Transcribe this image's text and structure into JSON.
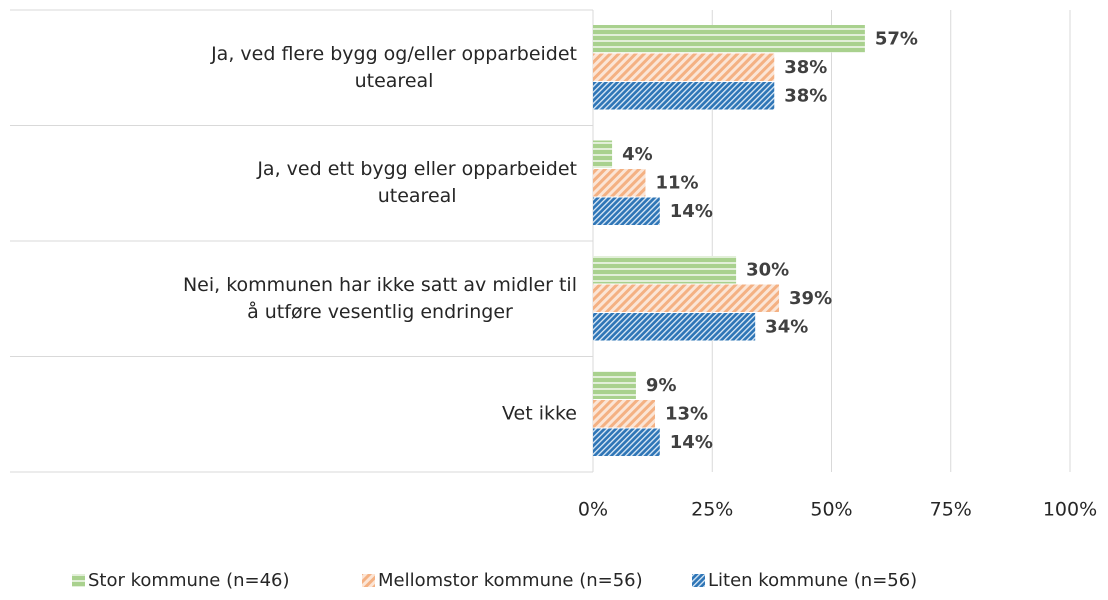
{
  "chart_data": {
    "type": "bar",
    "orientation": "horizontal",
    "categories": [
      "Ja, ved flere bygg og/eller opparbeidet\nuteareal",
      "Ja, ved ett bygg eller opparbeidet\nuteareal",
      "Nei, kommunen har ikke satt av midler til\nå utføre vesentlig endringer",
      "Vet ikke"
    ],
    "series": [
      {
        "name": "Stor kommune (n=46)",
        "color": "#a9d18e",
        "values": [
          57,
          4,
          30,
          9
        ],
        "value_labels": [
          "57%",
          "4%",
          "30%",
          "9%"
        ]
      },
      {
        "name": "Mellomstor kommune (n=56)",
        "color": "#f4b183",
        "values": [
          38,
          11,
          39,
          13
        ],
        "value_labels": [
          "38%",
          "11%",
          "39%",
          "13%"
        ]
      },
      {
        "name": "Liten kommune (n=56)",
        "color": "#2e75b6",
        "values": [
          38,
          14,
          34,
          14
        ],
        "value_labels": [
          "38%",
          "14%",
          "34%",
          "14%"
        ]
      }
    ],
    "xlim": [
      0,
      100
    ],
    "xticks": [
      {
        "value": 0,
        "label": "0%"
      },
      {
        "value": 25,
        "label": "25%"
      },
      {
        "value": 50,
        "label": "50%"
      },
      {
        "value": 75,
        "label": "75%"
      },
      {
        "value": 100,
        "label": "100%"
      }
    ],
    "grid": true,
    "legend": "bottom"
  }
}
